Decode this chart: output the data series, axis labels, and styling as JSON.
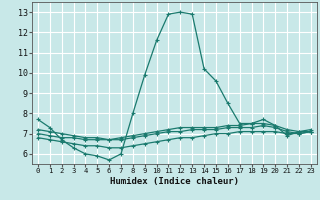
{
  "title": "",
  "xlabel": "Humidex (Indice chaleur)",
  "ylabel": "",
  "background_color": "#c8e8e8",
  "grid_color": "#ffffff",
  "line_color": "#1a7a6e",
  "xlim": [
    -0.5,
    23.5
  ],
  "ylim": [
    5.5,
    13.5
  ],
  "xticks": [
    0,
    1,
    2,
    3,
    4,
    5,
    6,
    7,
    8,
    9,
    10,
    11,
    12,
    13,
    14,
    15,
    16,
    17,
    18,
    19,
    20,
    21,
    22,
    23
  ],
  "yticks": [
    6,
    7,
    8,
    9,
    10,
    11,
    12,
    13
  ],
  "series": [
    {
      "x": [
        0,
        1,
        2,
        3,
        4,
        5,
        6,
        7,
        8,
        9,
        10,
        11,
        12,
        13,
        14,
        15,
        16,
        17,
        18,
        19,
        20,
        21,
        22,
        23
      ],
      "y": [
        7.7,
        7.3,
        6.7,
        6.3,
        6.0,
        5.9,
        5.7,
        6.0,
        8.0,
        9.9,
        11.6,
        12.9,
        13.0,
        12.9,
        10.2,
        9.6,
        8.5,
        7.5,
        7.5,
        7.7,
        7.4,
        6.9,
        7.1,
        7.1
      ]
    },
    {
      "x": [
        0,
        1,
        2,
        3,
        4,
        5,
        6,
        7,
        8,
        9,
        10,
        11,
        12,
        13,
        14,
        15,
        16,
        17,
        18,
        19,
        20,
        21,
        22,
        23
      ],
      "y": [
        7.0,
        6.9,
        6.8,
        6.8,
        6.7,
        6.7,
        6.7,
        6.7,
        6.8,
        6.9,
        7.0,
        7.1,
        7.1,
        7.2,
        7.2,
        7.2,
        7.3,
        7.3,
        7.3,
        7.4,
        7.3,
        7.1,
        7.0,
        7.1
      ]
    },
    {
      "x": [
        0,
        1,
        2,
        3,
        4,
        5,
        6,
        7,
        8,
        9,
        10,
        11,
        12,
        13,
        14,
        15,
        16,
        17,
        18,
        19,
        20,
        21,
        22,
        23
      ],
      "y": [
        6.8,
        6.7,
        6.6,
        6.5,
        6.4,
        6.4,
        6.3,
        6.3,
        6.4,
        6.5,
        6.6,
        6.7,
        6.8,
        6.8,
        6.9,
        7.0,
        7.0,
        7.1,
        7.1,
        7.1,
        7.1,
        7.0,
        7.0,
        7.1
      ]
    },
    {
      "x": [
        0,
        1,
        2,
        3,
        4,
        5,
        6,
        7,
        8,
        9,
        10,
        11,
        12,
        13,
        14,
        15,
        16,
        17,
        18,
        19,
        20,
        21,
        22,
        23
      ],
      "y": [
        7.2,
        7.1,
        7.0,
        6.9,
        6.8,
        6.8,
        6.7,
        6.8,
        6.9,
        7.0,
        7.1,
        7.2,
        7.3,
        7.3,
        7.3,
        7.3,
        7.4,
        7.4,
        7.5,
        7.5,
        7.4,
        7.2,
        7.1,
        7.2
      ]
    }
  ]
}
